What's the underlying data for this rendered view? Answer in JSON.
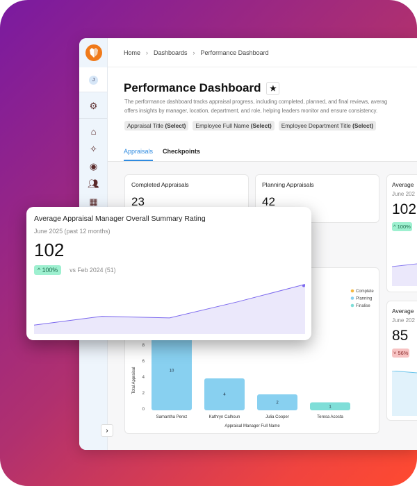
{
  "breadcrumb": [
    "Home",
    "Dashboards",
    "Performance Dashboard"
  ],
  "sidebar": {
    "avatar": "J",
    "icons": [
      "settings-icon",
      "home-icon",
      "sparkle-icon",
      "user-circle-icon",
      "users-icon",
      "calendar-check-icon"
    ]
  },
  "page": {
    "title": "Performance Dashboard",
    "description_line1": "The performance dashboard tracks appraisal progress, including completed, planned, and final reviews, averag",
    "description_line2": "offers insights by manager, location, department, and role, helping leaders monitor and ensure consistency.",
    "filters": [
      {
        "label": "Appraisal Title",
        "value": "(Select)"
      },
      {
        "label": "Employee Full Name",
        "value": "(Select)"
      },
      {
        "label": "Employee Department Title",
        "value": "(Select)"
      }
    ]
  },
  "tabs": [
    {
      "label": "Appraisals",
      "active": true
    },
    {
      "label": "Checkpoints",
      "active": false
    }
  ],
  "cards": {
    "completed": {
      "title": "Completed Appraisals",
      "value": "23"
    },
    "planning": {
      "title": "Planning Appraisals",
      "value": "42"
    },
    "avg1": {
      "title": "Average",
      "subtitle": "June 202",
      "value": "102",
      "badge": "^ 100%"
    },
    "avg2": {
      "title": "Average",
      "subtitle": "June 202",
      "value": "85",
      "badge": "˅ 56%"
    }
  },
  "floating_card": {
    "title": "Average Appraisal Manager Overall Summary Rating",
    "subtitle": "June 2025 (past 12 months)",
    "value": "102",
    "badge": "^ 100%",
    "comparison": "vs Feb 2024 (51)",
    "trend": [
      51,
      62,
      60,
      80,
      102
    ],
    "color": "#7b68ee"
  },
  "chart_data": {
    "type": "bar",
    "categories": [
      "Samantha Perez",
      "Kathryn Calhoun",
      "Julia Cooper",
      "Teresa Acosta"
    ],
    "series": [
      {
        "name": "Complete",
        "color": "#f5b942"
      },
      {
        "name": "Planning",
        "color": "#88d0f0"
      },
      {
        "name": "Finalise",
        "color": "#7fded8"
      }
    ],
    "values": [
      10,
      4,
      2,
      1
    ],
    "bar_series": [
      "Planning",
      "Planning",
      "Planning",
      "Finalise"
    ],
    "xlabel": "Appraisal Manager Full Name",
    "ylabel": "Total Appraisal",
    "yticks": [
      0,
      2,
      4,
      6,
      8
    ],
    "legend": "top-right"
  }
}
